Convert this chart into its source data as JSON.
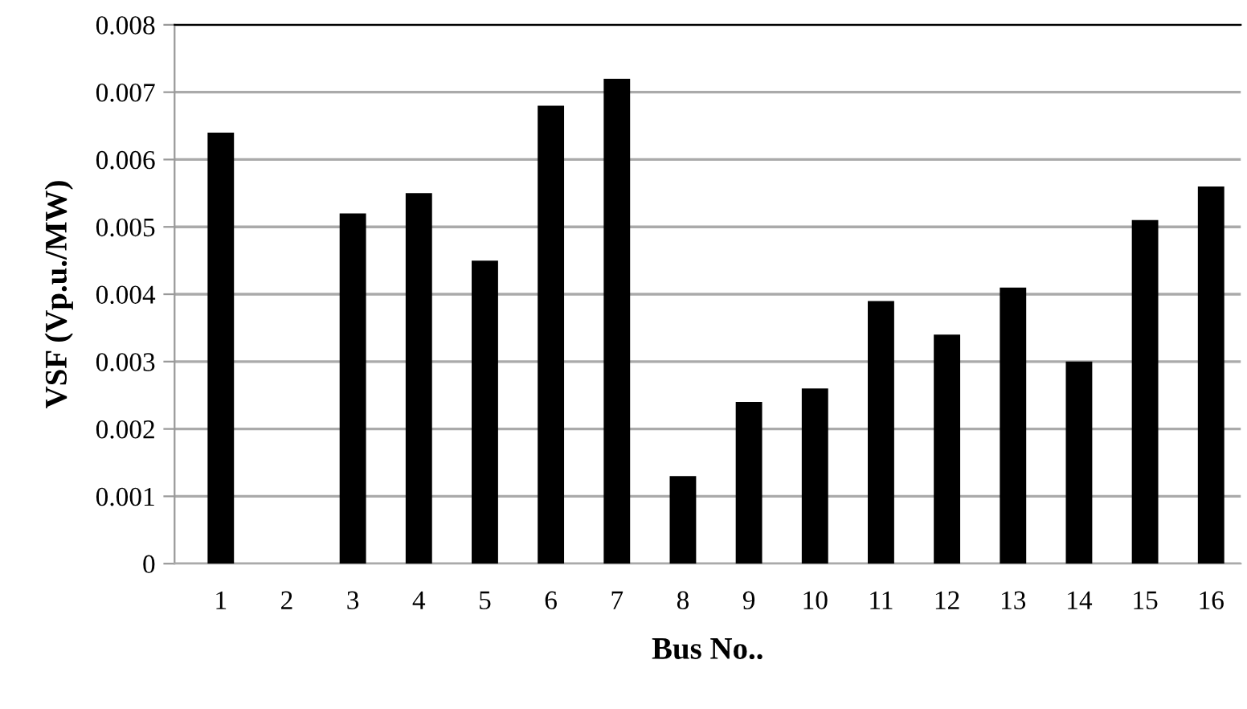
{
  "chart_data": {
    "type": "bar",
    "xlabel": "Bus No..",
    "ylabel": "VSF (Vp.u./MW)",
    "categories": [
      "1",
      "2",
      "3",
      "4",
      "5",
      "6",
      "7",
      "8",
      "9",
      "10",
      "11",
      "12",
      "13",
      "14",
      "15",
      "16"
    ],
    "values": [
      0.0064,
      0,
      0.0052,
      0.0055,
      0.0045,
      0.0068,
      0.0072,
      0.0013,
      0.0024,
      0.0026,
      0.0039,
      0.0034,
      0.0041,
      0.003,
      0.0051,
      0.0056
    ],
    "color": "#000000",
    "ylim": [
      0,
      0.008
    ],
    "yticks": [
      {
        "value": 0,
        "label": "0"
      },
      0.001,
      0.002,
      0.003,
      0.004,
      0.005,
      0.006,
      0.007,
      0.008
    ],
    "grid": "y"
  }
}
